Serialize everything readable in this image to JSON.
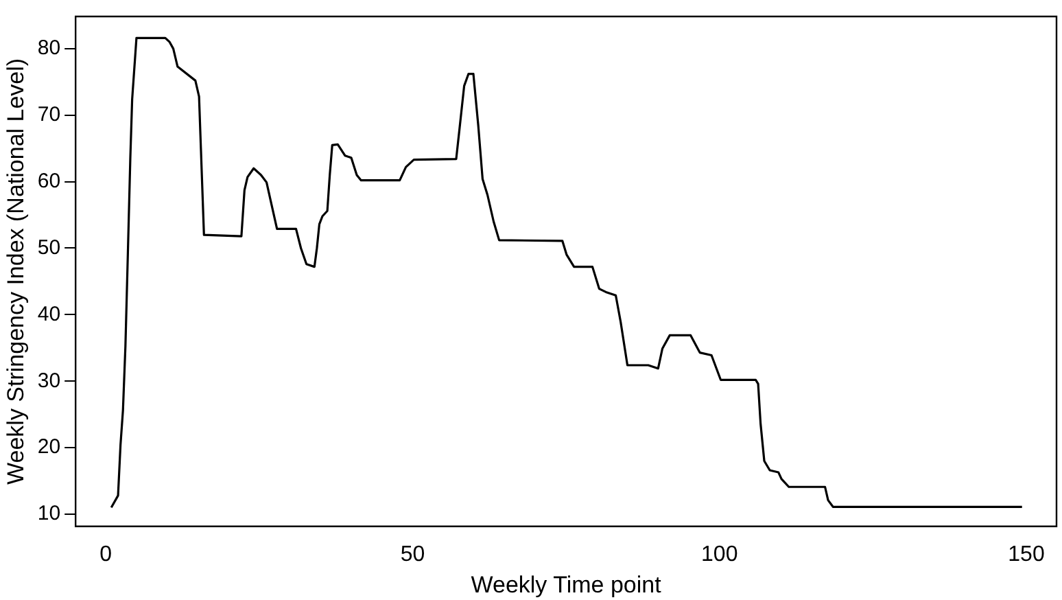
{
  "chart_data": {
    "type": "line",
    "xlabel": "Weekly Time point",
    "ylabel": "Weekly Stringency Index (National Level)",
    "xlim": [
      -4.92,
      154.92
    ],
    "ylim": [
      8.16,
      84.84
    ],
    "xticks": [
      0,
      50,
      100,
      150
    ],
    "yticks": [
      10,
      20,
      30,
      40,
      50,
      60,
      70,
      80
    ],
    "grid": false,
    "legend": false,
    "marker": "none",
    "line_style": "solid",
    "series": [
      {
        "color": "#000000",
        "x": [
          0.9,
          2,
          2.4,
          2.8,
          3.2,
          3.6,
          4,
          4.3,
          5,
          9.7,
          10.4,
          11,
          11.7,
          14.6,
          15.2,
          15.5,
          16,
          22.1,
          22.6,
          23.1,
          24.1,
          25.3,
          26.2,
          26.9,
          27.9,
          31,
          31.8,
          32.7,
          34,
          34.4,
          34.8,
          35.3,
          36.1,
          36.5,
          36.9,
          37.8,
          39,
          40,
          40.9,
          41.6,
          47.9,
          48.9,
          50.2,
          57.1,
          57.6,
          58.4,
          59.1,
          59.9,
          60.7,
          61.4,
          62.2,
          63.2,
          64.1,
          74.4,
          75.1,
          76.3,
          79.3,
          80.4,
          81.5,
          83.1,
          83.9,
          85,
          88.4,
          90,
          90.7,
          91.9,
          95.3,
          96.8,
          98.7,
          100.2,
          105.9,
          106.3,
          106.7,
          107.3,
          108.2,
          109.6,
          110.1,
          111.3,
          117.2,
          117.7,
          118.5,
          149.3
        ],
        "values": [
          11,
          12.8,
          20.4,
          25.6,
          35.2,
          49.2,
          63.6,
          72.4,
          81.6,
          81.6,
          81,
          80,
          77.3,
          75.2,
          72.8,
          65,
          52,
          51.8,
          58.7,
          60.7,
          62,
          61,
          59.9,
          57,
          52.9,
          52.9,
          50,
          47.6,
          47.2,
          50,
          53.6,
          54.8,
          55.6,
          61,
          65.5,
          65.6,
          63.9,
          63.6,
          61,
          60.2,
          60.2,
          62.2,
          63.3,
          63.4,
          67.6,
          74.4,
          76.2,
          76.2,
          68.4,
          60.4,
          58,
          54,
          51.2,
          51.1,
          49,
          47.2,
          47.2,
          43.9,
          43.4,
          42.9,
          38.9,
          32.4,
          32.4,
          31.9,
          34.9,
          36.9,
          36.9,
          34.3,
          33.9,
          30.2,
          30.2,
          29.6,
          23.6,
          18,
          16.6,
          16.3,
          15.3,
          14.1,
          14.1,
          12.1,
          11.1,
          11.1
        ]
      }
    ]
  }
}
